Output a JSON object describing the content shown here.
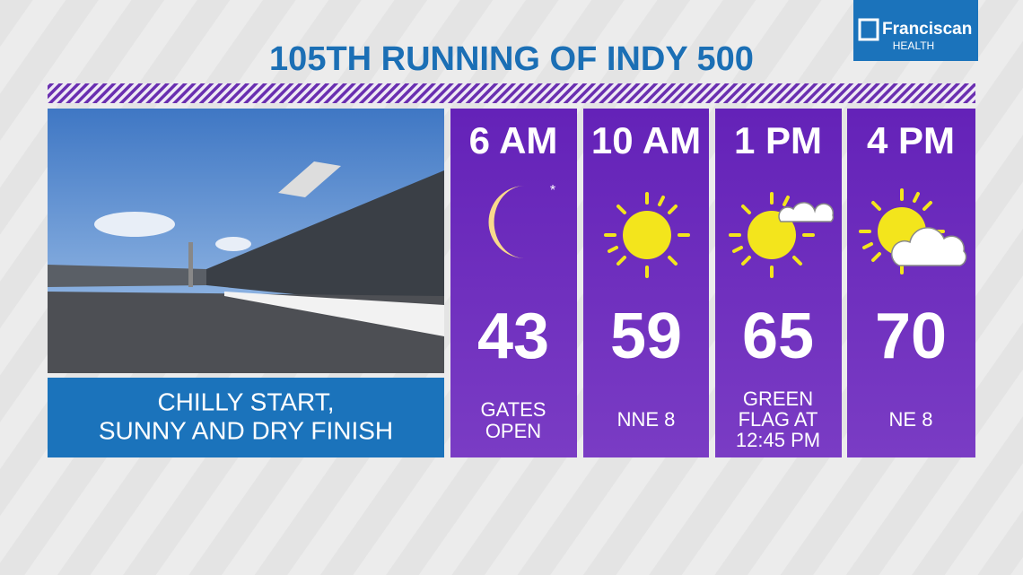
{
  "header": {
    "title": "105TH RUNNING OF INDY 500"
  },
  "sponsor": {
    "name": "Franciscan",
    "sub": "HEALTH"
  },
  "caption": {
    "lines": [
      "CHILLY START,",
      "SUNNY AND DRY FINISH"
    ]
  },
  "forecast": [
    {
      "time": "6 AM",
      "temp": 43,
      "marker": "*",
      "note": [
        "GATES",
        "OPEN"
      ]
    },
    {
      "time": "10 AM",
      "temp": 59,
      "note": [
        "NNE 8"
      ]
    },
    {
      "time": "1 PM",
      "temp": 65,
      "note": [
        "GREEN",
        "FLAG AT",
        "12:45 PM"
      ]
    },
    {
      "time": "4 PM",
      "temp": 70,
      "note": [
        "NE 8"
      ]
    }
  ]
}
